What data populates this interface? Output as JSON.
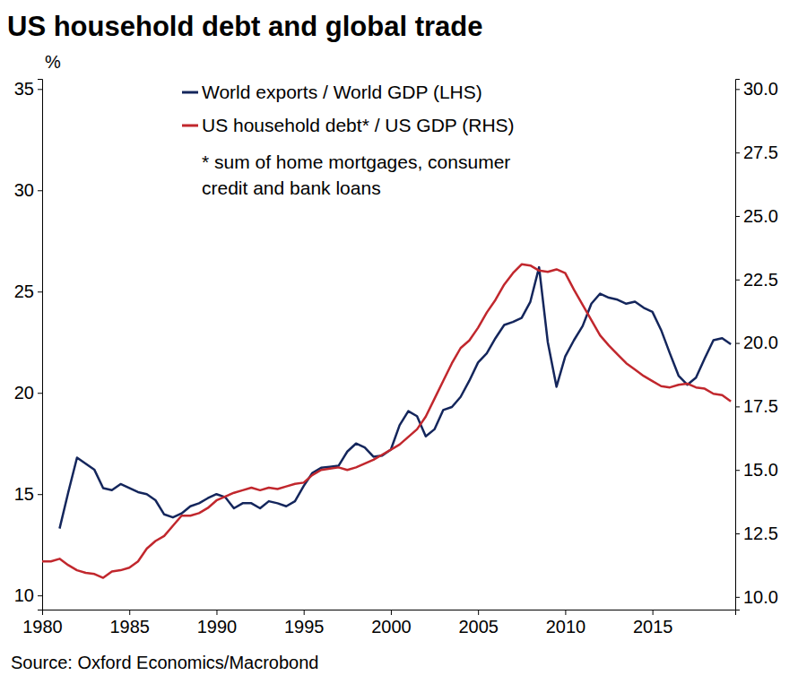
{
  "chart_data": {
    "type": "line",
    "title": "US household debt and global trade",
    "y_label": "%",
    "note": [
      "* sum of home mortgages, consumer",
      "credit and bank loans"
    ],
    "source": "Source: Oxford Economics/Macrobond",
    "legend": "top",
    "grid": false,
    "x": [
      1980,
      1980.5,
      1981,
      1981.5,
      1982,
      1982.5,
      1983,
      1983.5,
      1984,
      1984.5,
      1985,
      1985.5,
      1986,
      1986.5,
      1987,
      1987.5,
      1988,
      1988.5,
      1989,
      1989.5,
      1990,
      1990.5,
      1991,
      1991.5,
      1992,
      1992.5,
      1993,
      1993.5,
      1994,
      1994.5,
      1995,
      1995.5,
      1996,
      1996.5,
      1997,
      1997.5,
      1998,
      1998.5,
      1999,
      1999.5,
      2000,
      2000.5,
      2001,
      2001.5,
      2002,
      2002.5,
      2003,
      2003.5,
      2004,
      2004.5,
      2005,
      2005.5,
      2006,
      2006.5,
      2007,
      2007.5,
      2008,
      2008.5,
      2009,
      2009.5,
      2010,
      2010.5,
      2011,
      2011.5,
      2012,
      2012.5,
      2013,
      2013.5,
      2014,
      2014.5,
      2015,
      2015.5,
      2016,
      2016.5,
      2017,
      2017.5,
      2018,
      2018.5,
      2019,
      2019.5
    ],
    "xlim": [
      1980,
      2019.75
    ],
    "xticks": [
      1980,
      1985,
      1990,
      1995,
      2000,
      2005,
      2010,
      2015
    ],
    "ylim": [
      9.3,
      35.5
    ],
    "yticks": [
      10,
      15,
      20,
      25,
      30,
      35
    ],
    "y2lim": [
      9.5,
      30.4
    ],
    "y2ticks": [
      {
        "value": 10,
        "label": "10.0"
      },
      12.5,
      {
        "value": 15,
        "label": "15.0"
      },
      17.5,
      {
        "value": 20,
        "label": "20.0"
      },
      22.5,
      {
        "value": 25,
        "label": "25.0"
      },
      27.5,
      {
        "value": 30,
        "label": "30.0"
      }
    ],
    "series": [
      {
        "name": "World exports / World GDP (LHS)",
        "color": "#14265c",
        "axis": "y",
        "values": [
          null,
          null,
          13.3,
          15.1,
          16.8,
          16.5,
          16.2,
          15.3,
          15.2,
          15.5,
          15.3,
          15.1,
          15.0,
          14.7,
          14.0,
          13.85,
          14.05,
          14.4,
          14.55,
          14.8,
          15.0,
          14.85,
          14.3,
          14.55,
          14.55,
          14.3,
          14.65,
          14.55,
          14.4,
          14.65,
          15.4,
          16.05,
          16.3,
          16.35,
          16.4,
          17.1,
          17.5,
          17.3,
          16.85,
          16.9,
          17.2,
          18.4,
          19.1,
          18.85,
          17.85,
          18.2,
          19.15,
          19.3,
          19.8,
          20.6,
          21.5,
          21.95,
          22.7,
          23.35,
          23.5,
          23.7,
          24.5,
          26.2,
          22.5,
          20.3,
          21.8,
          22.6,
          23.3,
          24.4,
          24.9,
          24.7,
          24.6,
          24.4,
          24.5,
          24.2,
          24.0,
          23.1,
          21.95,
          20.85,
          20.4,
          20.75,
          21.7,
          22.6,
          22.7,
          22.4
        ]
      },
      {
        "name": "US household debt* / US GDP (RHS)",
        "color": "#c1272d",
        "axis": "y2",
        "values": [
          11.4,
          11.4,
          11.5,
          11.25,
          11.05,
          10.95,
          10.9,
          10.75,
          11.0,
          11.05,
          11.15,
          11.4,
          11.9,
          12.2,
          12.4,
          12.8,
          13.2,
          13.2,
          13.3,
          13.5,
          13.8,
          13.95,
          14.1,
          14.2,
          14.3,
          14.2,
          14.3,
          14.25,
          14.35,
          14.45,
          14.5,
          14.8,
          15.0,
          15.05,
          15.1,
          15.0,
          15.1,
          15.25,
          15.4,
          15.6,
          15.8,
          16.0,
          16.3,
          16.6,
          17.1,
          17.8,
          18.5,
          19.2,
          19.8,
          20.1,
          20.6,
          21.2,
          21.7,
          22.3,
          22.75,
          23.1,
          23.05,
          22.85,
          22.8,
          22.9,
          22.75,
          22.1,
          21.5,
          20.9,
          20.3,
          19.9,
          19.55,
          19.2,
          18.95,
          18.7,
          18.5,
          18.3,
          18.25,
          18.35,
          18.4,
          18.25,
          18.2,
          18.0,
          17.95,
          17.7
        ]
      }
    ]
  }
}
